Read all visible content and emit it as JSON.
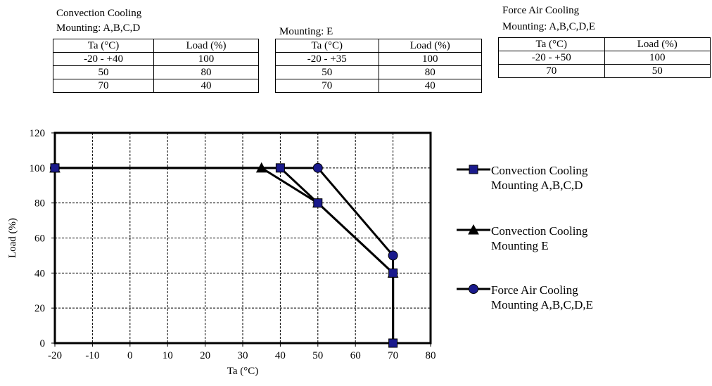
{
  "tables": [
    {
      "title_lines": [
        "Convection Cooling",
        "Mounting: A,B,C,D"
      ],
      "headers": [
        "Ta (°C)",
        "Load (%)"
      ],
      "rows": [
        [
          "-20 - +40",
          "100"
        ],
        [
          "50",
          "80"
        ],
        [
          "70",
          "40"
        ]
      ]
    },
    {
      "title_lines": [
        "Mounting: E"
      ],
      "headers": [
        "Ta (°C)",
        "Load (%)"
      ],
      "rows": [
        [
          "-20 - +35",
          "100"
        ],
        [
          "50",
          "80"
        ],
        [
          "70",
          "40"
        ]
      ]
    },
    {
      "title_lines": [
        "Force Air Cooling",
        "Mounting: A,B,C,D,E"
      ],
      "headers": [
        "Ta (°C)",
        "Load (%)"
      ],
      "rows": [
        [
          "-20 - +50",
          "100"
        ],
        [
          "70",
          "50"
        ]
      ]
    }
  ],
  "chart_data": {
    "type": "line",
    "xlabel": "Ta (°C)",
    "ylabel": "Load (%)",
    "xlim": [
      -20,
      80
    ],
    "ylim": [
      0,
      120
    ],
    "xticks": [
      -20,
      -10,
      0,
      10,
      20,
      30,
      40,
      50,
      60,
      70,
      80
    ],
    "yticks": [
      0,
      20,
      40,
      60,
      80,
      100,
      120
    ],
    "grid": true,
    "legend_position": "right",
    "series": [
      {
        "name_lines": [
          "Convection Cooling",
          "Mounting A,B,C,D"
        ],
        "marker": "square",
        "color": "#1a1a8c",
        "points": [
          [
            -20,
            100
          ],
          [
            40,
            100
          ],
          [
            50,
            80
          ],
          [
            70,
            40
          ],
          [
            70,
            0
          ]
        ]
      },
      {
        "name_lines": [
          "Convection Cooling",
          "Mounting E"
        ],
        "marker": "triangle",
        "color": "#000000",
        "points": [
          [
            -20,
            100
          ],
          [
            35,
            100
          ],
          [
            50,
            80
          ],
          [
            70,
            40
          ],
          [
            70,
            0
          ]
        ]
      },
      {
        "name_lines": [
          "Force Air Cooling",
          "Mounting A,B,C,D,E"
        ],
        "marker": "circle",
        "color": "#1a1a8c",
        "points": [
          [
            -20,
            100
          ],
          [
            50,
            100
          ],
          [
            70,
            50
          ],
          [
            70,
            0
          ]
        ]
      }
    ]
  }
}
